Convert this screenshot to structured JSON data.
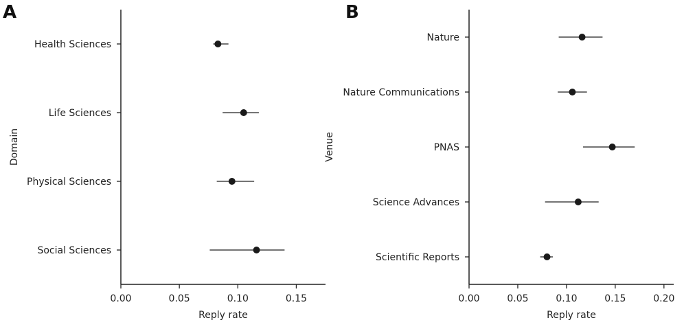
{
  "chart_data": [
    {
      "type": "scatter",
      "panel": "A",
      "title": "",
      "xlabel": "Reply rate",
      "ylabel": "Domain",
      "orientation": "horizontal",
      "categories": [
        "Health Sciences",
        "Life Sciences",
        "Physical Sciences",
        "Social Sciences"
      ],
      "values": [
        0.083,
        0.105,
        0.095,
        0.116
      ],
      "ci_low": [
        0.079,
        0.087,
        0.082,
        0.076
      ],
      "ci_high": [
        0.092,
        0.118,
        0.114,
        0.14
      ],
      "xlim": [
        0,
        0.175
      ],
      "xticks": [
        0,
        0.05,
        0.1,
        0.15
      ],
      "xtick_labels": [
        "0.00",
        "0.05",
        "0.10",
        "0.15"
      ],
      "grid": false,
      "legend": null
    },
    {
      "type": "scatter",
      "panel": "B",
      "title": "",
      "xlabel": "Reply rate",
      "ylabel": "Venue",
      "orientation": "horizontal",
      "categories": [
        "Nature",
        "Nature Communications",
        "PNAS",
        "Science Advances",
        "Scientific Reports"
      ],
      "values": [
        0.116,
        0.106,
        0.147,
        0.112,
        0.08
      ],
      "ci_low": [
        0.092,
        0.091,
        0.117,
        0.078,
        0.073
      ],
      "ci_high": [
        0.137,
        0.121,
        0.17,
        0.133,
        0.086
      ],
      "xlim": [
        0,
        0.21
      ],
      "xticks": [
        0,
        0.05,
        0.1,
        0.15,
        0.2
      ],
      "xtick_labels": [
        "0.00",
        "0.05",
        "0.10",
        "0.15",
        "0.20"
      ],
      "grid": false,
      "legend": null
    }
  ]
}
